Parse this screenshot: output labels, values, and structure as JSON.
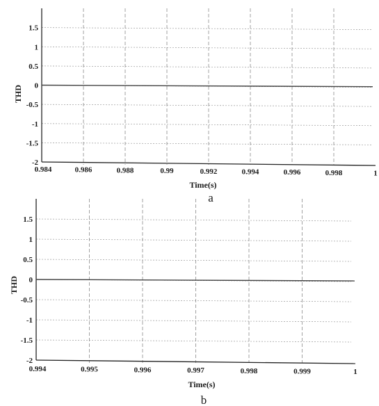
{
  "chart_data": [
    {
      "type": "line",
      "panel_label": "a",
      "xlabel": "Time(s)",
      "ylabel": "THD",
      "xlim": [
        0.984,
        1.0
      ],
      "ylim": [
        -2,
        2
      ],
      "x_ticks": [
        "0.984",
        "0.986",
        "0.988",
        "0.99",
        "0.992",
        "0.994",
        "0.996",
        "0.998",
        "1"
      ],
      "y_ticks": [
        "-2",
        "-1.5",
        "-1",
        "-0.5",
        "0",
        "0.5",
        "1",
        "1.5"
      ],
      "grid": true,
      "series": [
        {
          "x": [
            0.984,
            1.0
          ],
          "y": [
            0.0,
            0.0
          ]
        }
      ]
    },
    {
      "type": "line",
      "panel_label": "b",
      "xlabel": "Time(s)",
      "ylabel": "THD",
      "xlim": [
        0.994,
        1.0
      ],
      "ylim": [
        -2,
        2
      ],
      "x_ticks": [
        "0.994",
        "0.995",
        "0.996",
        "0.997",
        "0.998",
        "0.999",
        "1"
      ],
      "y_ticks": [
        "-2",
        "-1.5",
        "-1",
        "-0.5",
        "0",
        "0.5",
        "1",
        "1.5"
      ],
      "grid": true,
      "series": [
        {
          "x": [
            0.994,
            1.0
          ],
          "y": [
            0.0,
            0.0
          ]
        }
      ]
    }
  ]
}
